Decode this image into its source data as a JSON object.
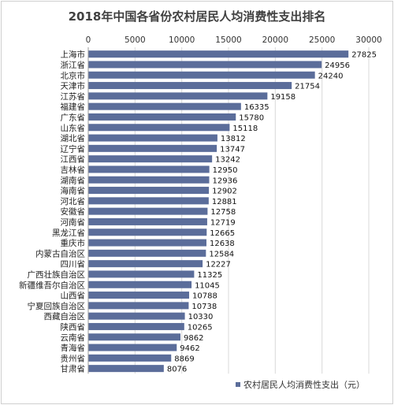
{
  "chart_data": {
    "type": "bar",
    "orientation": "horizontal",
    "title": "2018年中国各省份农村居民人均消费性支出排名",
    "categories": [
      "上海市",
      "浙江省",
      "北京市",
      "天津市",
      "江苏省",
      "福建省",
      "广东省",
      "山东省",
      "湖北省",
      "辽宁省",
      "江西省",
      "吉林省",
      "湖南省",
      "海南省",
      "河北省",
      "安徽省",
      "河南省",
      "黑龙江省",
      "重庆市",
      "内蒙古自治区",
      "四川省",
      "广西壮族自治区",
      "新疆维吾尔自治区",
      "山西省",
      "宁夏回族自治区",
      "西藏自治区",
      "陕西省",
      "云南省",
      "青海省",
      "贵州省",
      "甘肃省"
    ],
    "series": [
      {
        "name": "农村居民人均消费性支出（元）",
        "values": [
          27825,
          24956,
          24240,
          21754,
          19158,
          16335,
          15780,
          15118,
          13812,
          13747,
          13242,
          12950,
          12936,
          12902,
          12881,
          12758,
          12719,
          12665,
          12638,
          12584,
          12227,
          11325,
          11045,
          10788,
          10738,
          10330,
          10265,
          9862,
          9462,
          8869,
          8076
        ]
      }
    ],
    "xlim": [
      0,
      30000
    ],
    "xticks": [
      "0",
      "5000",
      "10000",
      "15000",
      "20000",
      "25000",
      "30000"
    ],
    "grid": true,
    "legend_position": "bottom-right",
    "bar_color": "#5b6d9a"
  }
}
